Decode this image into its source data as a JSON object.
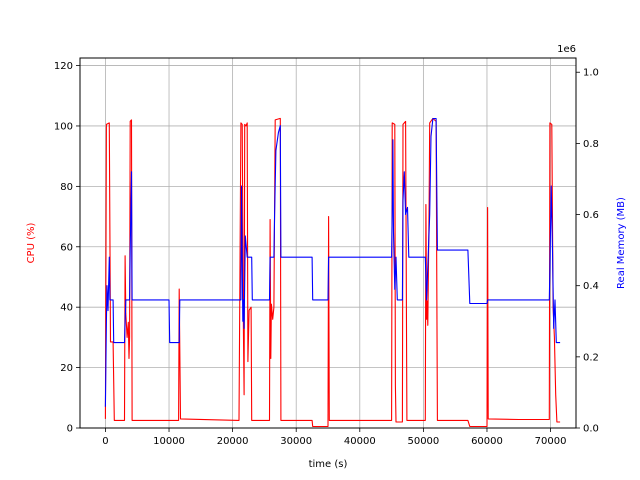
{
  "chart_data": {
    "type": "line",
    "xlabel": "time (s)",
    "ylabel_left": "CPU (%)",
    "ylabel_right": "Real Memory (MB)",
    "right_axis_offset_label": "1e6",
    "xlim": [
      -4000,
      74000
    ],
    "ylim_left": [
      0,
      122.5
    ],
    "ylim_right": [
      0,
      1.04
    ],
    "x_ticks": [
      0,
      10000,
      20000,
      30000,
      40000,
      50000,
      60000,
      70000
    ],
    "x_tick_labels": [
      "0",
      "10000",
      "20000",
      "30000",
      "40000",
      "50000",
      "60000",
      "70000"
    ],
    "y_left_ticks": [
      0,
      20,
      40,
      60,
      80,
      100,
      120
    ],
    "y_left_tick_labels": [
      "0",
      "20",
      "40",
      "60",
      "80",
      "100",
      "120"
    ],
    "y_right_ticks": [
      0.0,
      0.2,
      0.4,
      0.6,
      0.8,
      1.0
    ],
    "y_right_tick_labels": [
      "0.0",
      "0.2",
      "0.4",
      "0.6",
      "0.8",
      "1.0"
    ],
    "grid": true,
    "colors": {
      "cpu": "#ff0000",
      "memory": "#0000ff"
    },
    "series": [
      {
        "axis": "left",
        "color": "#ff0000",
        "points": [
          [
            0,
            3
          ],
          [
            150,
            100.5
          ],
          [
            600,
            101
          ],
          [
            800,
            28.5
          ],
          [
            1200,
            28.5
          ],
          [
            1400,
            2.5
          ],
          [
            3000,
            2.5
          ],
          [
            3100,
            57
          ],
          [
            3200,
            38
          ],
          [
            3400,
            30
          ],
          [
            3600,
            35
          ],
          [
            3700,
            23
          ],
          [
            3800,
            30
          ],
          [
            3900,
            101.5
          ],
          [
            4100,
            102
          ],
          [
            4200,
            2.5
          ],
          [
            10000,
            2.5
          ],
          [
            11500,
            2.5
          ],
          [
            11600,
            46
          ],
          [
            11800,
            3
          ],
          [
            21000,
            2.5
          ],
          [
            21300,
            101
          ],
          [
            21500,
            100.5
          ],
          [
            21700,
            33
          ],
          [
            21800,
            11
          ],
          [
            21900,
            100.5
          ],
          [
            22100,
            100
          ],
          [
            22300,
            101
          ],
          [
            22400,
            22
          ],
          [
            22600,
            39
          ],
          [
            22900,
            40
          ],
          [
            23000,
            2.5
          ],
          [
            25800,
            2.5
          ],
          [
            25900,
            69
          ],
          [
            26000,
            23
          ],
          [
            26100,
            41
          ],
          [
            26300,
            36
          ],
          [
            26500,
            40
          ],
          [
            26700,
            102
          ],
          [
            27500,
            102.5
          ],
          [
            27600,
            2.5
          ],
          [
            32500,
            2.5
          ],
          [
            32600,
            0.5
          ],
          [
            35000,
            0.5
          ],
          [
            35100,
            70
          ],
          [
            35200,
            2.5
          ],
          [
            40000,
            2.5
          ],
          [
            45000,
            2.5
          ],
          [
            45100,
            101
          ],
          [
            45500,
            100.5
          ],
          [
            45600,
            14
          ],
          [
            45700,
            2
          ],
          [
            46700,
            2
          ],
          [
            46800,
            100.5
          ],
          [
            47200,
            101.5
          ],
          [
            47400,
            2.5
          ],
          [
            50300,
            2.5
          ],
          [
            50400,
            74
          ],
          [
            50500,
            36
          ],
          [
            50600,
            42
          ],
          [
            50700,
            34
          ],
          [
            50900,
            73
          ],
          [
            51000,
            101
          ],
          [
            51500,
            102.5
          ],
          [
            52000,
            101.5
          ],
          [
            52200,
            2.5
          ],
          [
            57000,
            2.5
          ],
          [
            57300,
            0.5
          ],
          [
            60000,
            0.5
          ],
          [
            60100,
            73
          ],
          [
            60200,
            3
          ],
          [
            65000,
            2.8
          ],
          [
            69800,
            2.8
          ],
          [
            69900,
            101
          ],
          [
            70200,
            100.5
          ],
          [
            70400,
            40
          ],
          [
            70600,
            30
          ],
          [
            70800,
            11
          ],
          [
            71000,
            2
          ],
          [
            71500,
            2
          ]
        ]
      },
      {
        "axis": "right",
        "color": "#0000ff",
        "points": [
          [
            0,
            0.06
          ],
          [
            150,
            0.3
          ],
          [
            250,
            0.4
          ],
          [
            400,
            0.33
          ],
          [
            600,
            0.48
          ],
          [
            700,
            0.36
          ],
          [
            1200,
            0.36
          ],
          [
            1300,
            0.24
          ],
          [
            3000,
            0.24
          ],
          [
            3200,
            0.36
          ],
          [
            3800,
            0.36
          ],
          [
            3900,
            0.5
          ],
          [
            4100,
            0.72
          ],
          [
            4200,
            0.36
          ],
          [
            10000,
            0.36
          ],
          [
            10100,
            0.24
          ],
          [
            11600,
            0.24
          ],
          [
            11700,
            0.36
          ],
          [
            21300,
            0.36
          ],
          [
            21400,
            0.68
          ],
          [
            21500,
            0.48
          ],
          [
            21600,
            0.3
          ],
          [
            21700,
            0.36
          ],
          [
            21800,
            0.28
          ],
          [
            22000,
            0.54
          ],
          [
            22300,
            0.48
          ],
          [
            22600,
            0.48
          ],
          [
            23000,
            0.48
          ],
          [
            23100,
            0.36
          ],
          [
            25800,
            0.36
          ],
          [
            25900,
            0.48
          ],
          [
            26500,
            0.48
          ],
          [
            26600,
            0.6
          ],
          [
            26800,
            0.78
          ],
          [
            27200,
            0.83
          ],
          [
            27500,
            0.85
          ],
          [
            27600,
            0.48
          ],
          [
            32500,
            0.48
          ],
          [
            32600,
            0.36
          ],
          [
            35000,
            0.36
          ],
          [
            35100,
            0.48
          ],
          [
            40000,
            0.48
          ],
          [
            45000,
            0.48
          ],
          [
            45100,
            0.6
          ],
          [
            45200,
            0.81
          ],
          [
            45300,
            0.55
          ],
          [
            45500,
            0.39
          ],
          [
            45700,
            0.48
          ],
          [
            45900,
            0.36
          ],
          [
            46700,
            0.36
          ],
          [
            46800,
            0.64
          ],
          [
            47000,
            0.72
          ],
          [
            47200,
            0.6
          ],
          [
            47500,
            0.62
          ],
          [
            47700,
            0.48
          ],
          [
            50300,
            0.48
          ],
          [
            50500,
            0.36
          ],
          [
            51000,
            0.6
          ],
          [
            51200,
            0.82
          ],
          [
            51500,
            0.87
          ],
          [
            52000,
            0.87
          ],
          [
            52200,
            0.5
          ],
          [
            57000,
            0.5
          ],
          [
            57300,
            0.35
          ],
          [
            60000,
            0.35
          ],
          [
            60100,
            0.36
          ],
          [
            69800,
            0.36
          ],
          [
            69900,
            0.45
          ],
          [
            70100,
            0.68
          ],
          [
            70300,
            0.5
          ],
          [
            70500,
            0.28
          ],
          [
            70700,
            0.36
          ],
          [
            70900,
            0.24
          ],
          [
            71500,
            0.24
          ]
        ]
      }
    ]
  }
}
